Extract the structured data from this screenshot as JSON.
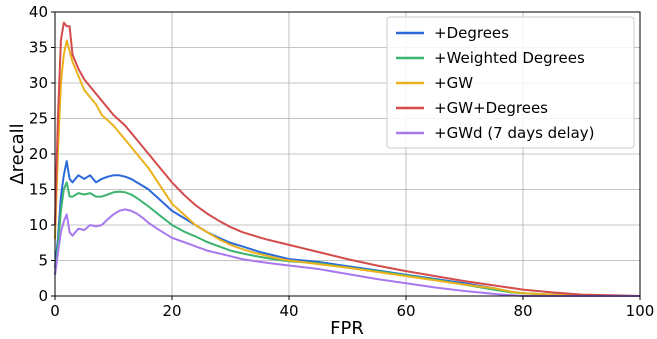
{
  "chart_data": {
    "type": "line",
    "xlabel": "FPR",
    "ylabel": "Δrecall",
    "xlim": [
      0,
      100
    ],
    "ylim": [
      0,
      40
    ],
    "x_ticks": [
      "0",
      "20",
      "40",
      "60",
      "80",
      "100"
    ],
    "y_ticks": [
      "0",
      "5",
      "10",
      "15",
      "20",
      "25",
      "30",
      "35",
      "40"
    ],
    "grid": true,
    "legend_position": "top-right",
    "series": [
      {
        "name": "+Degrees",
        "color": "#2b6ad8",
        "x": [
          0,
          0.5,
          1,
          1.5,
          2,
          2.5,
          3,
          4,
          5,
          6,
          7,
          8,
          9,
          10,
          11,
          12,
          13,
          14,
          15,
          16,
          18,
          20,
          22,
          24,
          26,
          28,
          30,
          32,
          35,
          38,
          40,
          45,
          50,
          55,
          60,
          65,
          70,
          75,
          78,
          80,
          85,
          90,
          95,
          100
        ],
        "y": [
          4,
          8,
          14,
          17,
          19,
          16.5,
          16,
          17,
          16.5,
          17,
          16,
          16.5,
          16.8,
          17,
          17,
          16.8,
          16.5,
          16,
          15.5,
          15,
          13.5,
          12,
          11,
          10,
          9,
          8.2,
          7.5,
          7,
          6.2,
          5.6,
          5.2,
          4.8,
          4.2,
          3.6,
          3,
          2.4,
          1.8,
          1.1,
          0.6,
          0.4,
          0.2,
          0.1,
          0,
          0
        ]
      },
      {
        "name": "+Weighted Degrees",
        "color": "#3cb46e",
        "x": [
          0,
          0.5,
          1,
          1.5,
          2,
          2.5,
          3,
          4,
          5,
          6,
          7,
          8,
          9,
          10,
          11,
          12,
          13,
          14,
          15,
          16,
          18,
          20,
          22,
          24,
          26,
          28,
          30,
          32,
          35,
          38,
          40,
          45,
          50,
          55,
          60,
          65,
          70,
          75,
          78,
          80,
          85,
          90,
          95,
          100
        ],
        "y": [
          3,
          7,
          12,
          15,
          16,
          14,
          14,
          14.5,
          14.3,
          14.5,
          14,
          14,
          14.3,
          14.6,
          14.7,
          14.6,
          14.3,
          13.8,
          13.2,
          12.6,
          11.3,
          10,
          9.1,
          8.4,
          7.6,
          7,
          6.4,
          6,
          5.5,
          5.1,
          4.9,
          4.6,
          4,
          3.5,
          2.9,
          2.3,
          1.6,
          0.9,
          0.5,
          0.4,
          0.2,
          0.1,
          0,
          0
        ]
      },
      {
        "name": "+GW",
        "color": "#eab21c",
        "x": [
          0,
          0.5,
          1,
          1.5,
          2,
          3,
          4,
          5,
          6,
          7,
          8,
          10,
          12,
          14,
          16,
          18,
          20,
          22,
          24,
          26,
          28,
          30,
          32,
          34,
          36,
          38,
          40,
          42,
          45,
          50,
          55,
          60,
          65,
          70,
          75,
          78,
          80,
          85,
          90,
          95,
          100
        ],
        "y": [
          8,
          20,
          30,
          34,
          36,
          33,
          31,
          29,
          28,
          27,
          25.5,
          24,
          22,
          20,
          18,
          15.5,
          13,
          11.5,
          10,
          9,
          8,
          7.2,
          6.6,
          6.1,
          5.7,
          5.3,
          5,
          4.8,
          4.5,
          4,
          3.4,
          2.8,
          2.2,
          1.6,
          1.1,
          0.6,
          0.4,
          0.2,
          0.1,
          0,
          0
        ]
      },
      {
        "name": "+GW+Degrees",
        "color": "#d44b4b",
        "x": [
          0,
          0.5,
          1,
          1.5,
          2,
          2.5,
          3,
          4,
          5,
          6,
          7,
          8,
          10,
          12,
          14,
          16,
          18,
          20,
          22,
          24,
          26,
          28,
          30,
          32,
          34,
          36,
          38,
          40,
          42,
          45,
          50,
          55,
          60,
          65,
          70,
          75,
          80,
          85,
          90,
          95,
          100
        ],
        "y": [
          10,
          25,
          36,
          38.5,
          38,
          38,
          34,
          32,
          30.5,
          29.5,
          28.5,
          27.5,
          25.5,
          24,
          22,
          20,
          18,
          16,
          14.3,
          12.8,
          11.6,
          10.6,
          9.7,
          9,
          8.5,
          8,
          7.6,
          7.2,
          6.8,
          6.2,
          5.2,
          4.3,
          3.5,
          2.8,
          2.1,
          1.5,
          0.9,
          0.5,
          0.2,
          0.1,
          0
        ]
      },
      {
        "name": "+GWd (7 days delay)",
        "color": "#a878ee",
        "x": [
          0,
          0.5,
          1,
          1.5,
          2,
          2.5,
          3,
          4,
          5,
          6,
          7,
          8,
          9,
          10,
          11,
          12,
          13,
          14,
          15,
          16,
          18,
          20,
          22,
          24,
          26,
          28,
          30,
          32,
          35,
          38,
          40,
          45,
          50,
          55,
          60,
          65,
          70,
          75,
          78,
          80,
          85,
          90,
          95,
          100
        ],
        "y": [
          3,
          6,
          9,
          10.5,
          11.5,
          9,
          8.5,
          9.5,
          9.3,
          10,
          9.8,
          10,
          10.8,
          11.5,
          12,
          12.2,
          12,
          11.6,
          11,
          10.3,
          9.2,
          8.2,
          7.6,
          7,
          6.4,
          6,
          5.6,
          5.2,
          4.8,
          4.5,
          4.3,
          3.8,
          3.1,
          2.4,
          1.8,
          1.2,
          0.7,
          0.3,
          0.1,
          0,
          0,
          0,
          0,
          0
        ]
      }
    ]
  }
}
